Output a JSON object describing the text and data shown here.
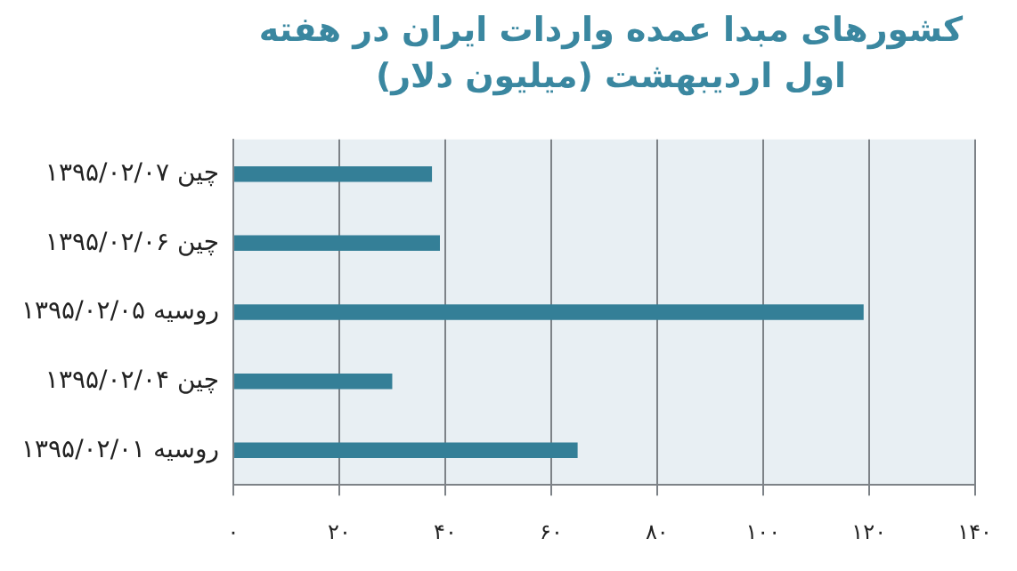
{
  "chart_data": {
    "type": "bar",
    "orientation": "horizontal",
    "title": "کشورهای مبدا عمده واردات ایران در هفته اول اردیبهشت (میلیون دلار)",
    "categories": [
      "چین ۱۳۹۵/۰۲/۰۷",
      "چین ۱۳۹۵/۰۲/۰۶",
      "روسیه ۱۳۹۵/۰۲/۰۵",
      "چین ۱۳۹۵/۰۲/۰۴",
      "روسیه ۱۳۹۵/۰۲/۰۱"
    ],
    "values": [
      37.5,
      39,
      119,
      30,
      65
    ],
    "color": "#347f97",
    "xlim": [
      0,
      140
    ],
    "xticks": [
      {
        "value": 0,
        "label": "۰"
      },
      {
        "value": 20,
        "label": "۲۰"
      },
      {
        "value": 40,
        "label": "۴۰"
      },
      {
        "value": 60,
        "label": "۶۰"
      },
      {
        "value": 80,
        "label": "۸۰"
      },
      {
        "value": 100,
        "label": "۱۰۰"
      },
      {
        "value": 120,
        "label": "۱۲۰"
      },
      {
        "value": 140,
        "label": "۱۴۰"
      }
    ],
    "grid": "x",
    "legend": false
  }
}
